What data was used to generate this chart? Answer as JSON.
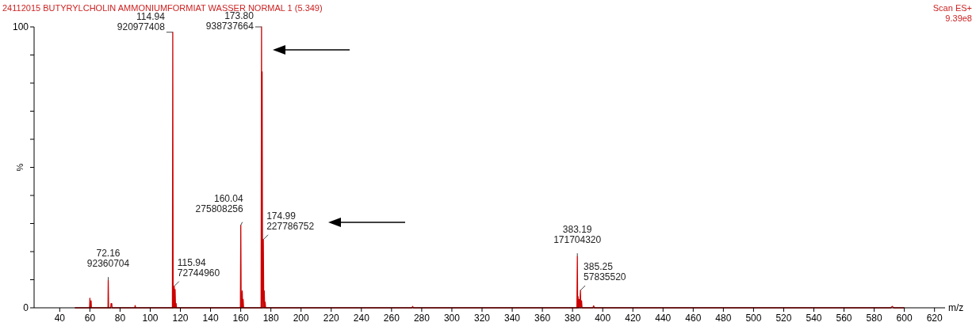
{
  "chart_data": {
    "type": "line",
    "title": "24112015 BUTYRYLCHOLIN AMMONIUMFORMIAT WASSER NORMAL 1 (5.349)",
    "subtitle": "Scan ES+",
    "xlabel": "m/z",
    "ylabel": "%",
    "annotations": [
      "9.39e8",
      {
        "text": "114.94\n920977408",
        "x": 114.94,
        "y": 98.1
      },
      {
        "text": "173.80\n938737664",
        "x": 173.8,
        "y": 100
      },
      {
        "text": "160.04\n275808256",
        "x": 160.04,
        "y": 29.4
      },
      {
        "text": "174.99\n227786752",
        "x": 174.99,
        "y": 24.3
      },
      {
        "text": "72.16\n92360704",
        "x": 72.16,
        "y": 9.8
      },
      {
        "text": "115.94\n72744960",
        "x": 115.94,
        "y": 7.7
      },
      {
        "text": "383.19\n171704320",
        "x": 383.19,
        "y": 18.3
      },
      {
        "text": "385.25\n57835520",
        "x": 385.25,
        "y": 6.2
      }
    ],
    "series": [
      {
        "color": "#cc0000",
        "x": [
          50,
          59.8,
          60,
          60.2,
          60.6,
          60.8,
          61,
          72,
          72.16,
          72.4,
          73.8,
          74,
          74.5,
          74.7,
          89.8,
          90,
          90.3,
          114.7,
          114.94,
          115.2,
          115.5,
          115.94,
          116.2,
          116.5,
          116.8,
          117.2,
          117.4,
          159.8,
          160.04,
          160.3,
          160.8,
          161,
          161.3,
          161.6,
          161.9,
          173.5,
          173.8,
          174,
          174.2,
          174.5,
          174.99,
          175.3,
          175.6,
          175.9,
          176.2,
          176.5,
          273.5,
          274,
          274.5,
          382.9,
          383.19,
          383.4,
          383.7,
          384,
          384.4,
          384.7,
          385.25,
          385.5,
          386,
          386.3,
          393.5,
          394,
          394.5,
          591,
          592,
          593,
          600
        ],
        "values": [
          0,
          0,
          3.4,
          0,
          0,
          2.5,
          0,
          0,
          9.8,
          0,
          0,
          1.5,
          1.5,
          0,
          0,
          0.8,
          0,
          0,
          98.1,
          0,
          0,
          7.7,
          0,
          6.5,
          0,
          1.5,
          0,
          0,
          29.4,
          0,
          0,
          6,
          0,
          3,
          0,
          0,
          100,
          0,
          84,
          0,
          24.3,
          0,
          6,
          0,
          2,
          0,
          0,
          0.5,
          0,
          0,
          18.3,
          0,
          4,
          0,
          3,
          0,
          6.2,
          0,
          2.5,
          0,
          0,
          0.7,
          0,
          0,
          0.5,
          0,
          0
        ]
      }
    ],
    "xlim": [
      23,
      627
    ],
    "ylim": [
      0,
      100
    ],
    "xticks": [
      40,
      60,
      80,
      100,
      120,
      140,
      160,
      180,
      200,
      220,
      240,
      260,
      280,
      300,
      320,
      340,
      360,
      380,
      400,
      420,
      440,
      460,
      480,
      500,
      520,
      540,
      560,
      580,
      600,
      620
    ],
    "yticks": [
      0,
      {
        "value": 10,
        "label": null
      },
      {
        "value": 20,
        "label": null
      },
      {
        "value": 30,
        "label": null
      },
      {
        "value": 40,
        "label": null
      },
      {
        "value": 50,
        "label": null
      },
      {
        "value": 60,
        "label": null
      },
      {
        "value": 70,
        "label": null
      },
      {
        "value": 80,
        "label": null
      },
      {
        "value": 90,
        "label": null
      },
      100
    ],
    "grid": false,
    "line_style": "solid"
  }
}
